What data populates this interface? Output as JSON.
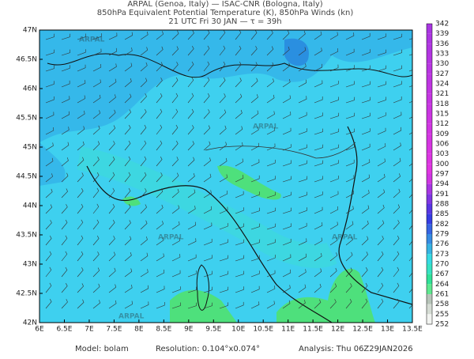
{
  "header": {
    "lines": [
      "ARPAL (Genoa, Italy)  —  ISAC-CNR (Bologna, Italy)",
      "850hPa Equivalent Potential Temperature (K), 850hPa Winds (kn)",
      "21 UTC Fri 30 JAN  —  τ = 39h"
    ]
  },
  "map": {
    "lat_labels": [
      "47N",
      "46.5N",
      "46N",
      "45.5N",
      "45N",
      "44.5N",
      "44N",
      "43.5N",
      "43N",
      "42.5N",
      "42N"
    ],
    "lon_labels": [
      "6E",
      "6.5E",
      "7E",
      "7.5E",
      "8E",
      "8.5E",
      "9E",
      "9.5E",
      "10E",
      "10.5E",
      "11E",
      "11.5E",
      "12E",
      "12.5E",
      "13E",
      "13.5E"
    ],
    "watermark": "ARPAL"
  },
  "colorbar": {
    "labels": [
      "342",
      "339",
      "336",
      "333",
      "330",
      "327",
      "324",
      "321",
      "318",
      "315",
      "312",
      "309",
      "306",
      "303",
      "300",
      "297",
      "294",
      "291",
      "288",
      "285",
      "282",
      "279",
      "276",
      "273",
      "270",
      "267",
      "264",
      "261",
      "258",
      "255",
      "252"
    ]
  },
  "footer": {
    "model": "Model: bolam",
    "resolution": "Resolution: 0.104°x0.074°",
    "analysis": "Analysis: Thu 06Z29JAN2026"
  }
}
